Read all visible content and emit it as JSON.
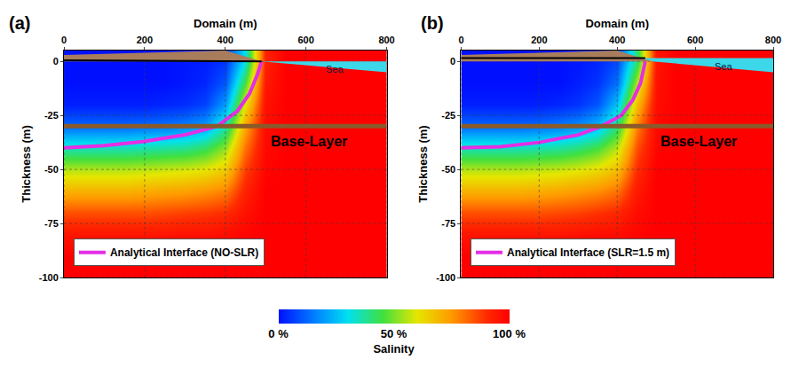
{
  "chart_data": {
    "type": "heatmap",
    "x_label": "Domain (m)",
    "y_label": "Thickness (m)",
    "xlim": [
      0,
      800
    ],
    "xticks": [
      0,
      200,
      400,
      600,
      800
    ],
    "ylim": [
      -100,
      5
    ],
    "yticks": [
      0,
      -25,
      -50,
      -75,
      -100
    ],
    "grid": true,
    "colorbar": {
      "title": "Salinity",
      "range": [
        0,
        100
      ],
      "ticks": [
        {
          "value": 0,
          "label": "0 %"
        },
        {
          "value": 50,
          "label": "50 %"
        },
        {
          "value": 100,
          "label": "100 %"
        }
      ]
    },
    "x": [
      0,
      50,
      100,
      150,
      200,
      250,
      300,
      350,
      400,
      450,
      500,
      550,
      600,
      650,
      700,
      750,
      800
    ],
    "y": [
      0,
      -10,
      -20,
      -30,
      -40,
      -50,
      -60,
      -70,
      -80,
      -90,
      -100
    ],
    "panels": [
      {
        "label": "(a)",
        "legend": "lower left",
        "cells": [
          [
            0,
            0,
            0,
            0,
            0,
            0,
            1,
            2,
            5,
            30,
            92,
            100,
            100,
            100,
            100,
            100,
            100
          ],
          [
            0,
            0,
            0,
            0,
            0,
            0,
            1,
            3,
            10,
            45,
            94,
            100,
            100,
            100,
            100,
            100,
            100
          ],
          [
            2,
            2,
            2,
            2,
            2,
            3,
            4,
            7,
            20,
            60,
            96,
            100,
            100,
            100,
            100,
            100,
            100
          ],
          [
            12,
            12,
            12,
            12,
            13,
            14,
            16,
            20,
            35,
            72,
            97,
            100,
            100,
            100,
            100,
            100,
            100
          ],
          [
            35,
            35,
            35,
            35,
            36,
            37,
            38,
            42,
            52,
            80,
            98,
            100,
            100,
            100,
            100,
            100,
            100
          ],
          [
            55,
            55,
            55,
            55,
            56,
            57,
            58,
            60,
            65,
            87,
            99,
            100,
            100,
            100,
            100,
            100,
            100
          ],
          [
            70,
            70,
            70,
            70,
            71,
            72,
            73,
            75,
            78,
            92,
            100,
            100,
            100,
            100,
            100,
            100,
            100
          ],
          [
            85,
            85,
            85,
            85,
            85,
            86,
            87,
            88,
            90,
            96,
            100,
            100,
            100,
            100,
            100,
            100,
            100
          ],
          [
            95,
            95,
            95,
            95,
            95,
            95,
            96,
            96,
            97,
            99,
            100,
            100,
            100,
            100,
            100,
            100,
            100
          ],
          [
            100,
            100,
            100,
            100,
            100,
            100,
            100,
            100,
            100,
            100,
            100,
            100,
            100,
            100,
            100,
            100,
            100
          ],
          [
            100,
            100,
            100,
            100,
            100,
            100,
            100,
            100,
            100,
            100,
            100,
            100,
            100,
            100,
            100,
            100,
            100
          ]
        ],
        "interface": {
          "name": "Analytical Interface (NO-SLR)",
          "color": "#e52ee5",
          "x": [
            0,
            100,
            200,
            300,
            380,
            430,
            460,
            480,
            490
          ],
          "y": [
            -40,
            -39,
            -37,
            -34,
            -30,
            -23,
            -15,
            -6,
            0
          ]
        },
        "base_layer": {
          "label": "Base-Layer",
          "y": -30
        },
        "land_surface": {
          "x": [
            0,
            400,
            490
          ],
          "y": [
            3,
            5,
            0
          ]
        },
        "water_table": {
          "x": [
            0,
            490
          ],
          "y": [
            0.5,
            0
          ]
        },
        "sea": {
          "label": "Sea",
          "level": 0,
          "seabed_x": [
            490,
            800
          ],
          "seabed_y": [
            0,
            -5
          ]
        }
      },
      {
        "label": "(b)",
        "legend": "lower left",
        "cells": [
          [
            0,
            0,
            0,
            0,
            0,
            0,
            1,
            3,
            8,
            40,
            95,
            100,
            100,
            100,
            100,
            100,
            100
          ],
          [
            0,
            0,
            0,
            0,
            0,
            0,
            2,
            5,
            14,
            55,
            96,
            100,
            100,
            100,
            100,
            100,
            100
          ],
          [
            2,
            2,
            2,
            2,
            2,
            3,
            5,
            10,
            26,
            68,
            97,
            100,
            100,
            100,
            100,
            100,
            100
          ],
          [
            12,
            12,
            12,
            12,
            13,
            15,
            18,
            24,
            40,
            78,
            98,
            100,
            100,
            100,
            100,
            100,
            100
          ],
          [
            35,
            35,
            35,
            35,
            36,
            37,
            40,
            45,
            56,
            85,
            99,
            100,
            100,
            100,
            100,
            100,
            100
          ],
          [
            55,
            55,
            55,
            55,
            56,
            57,
            59,
            62,
            68,
            90,
            100,
            100,
            100,
            100,
            100,
            100,
            100
          ],
          [
            70,
            70,
            70,
            70,
            71,
            72,
            74,
            76,
            80,
            94,
            100,
            100,
            100,
            100,
            100,
            100,
            100
          ],
          [
            85,
            85,
            85,
            85,
            85,
            86,
            87,
            89,
            91,
            97,
            100,
            100,
            100,
            100,
            100,
            100,
            100
          ],
          [
            95,
            95,
            95,
            95,
            95,
            95,
            96,
            97,
            97,
            99,
            100,
            100,
            100,
            100,
            100,
            100,
            100
          ],
          [
            100,
            100,
            100,
            100,
            100,
            100,
            100,
            100,
            100,
            100,
            100,
            100,
            100,
            100,
            100,
            100,
            100
          ],
          [
            100,
            100,
            100,
            100,
            100,
            100,
            100,
            100,
            100,
            100,
            100,
            100,
            100,
            100,
            100,
            100,
            100
          ]
        ],
        "interface": {
          "name": "Analytical Interface (SLR=1.5 m)",
          "color": "#e52ee5",
          "x": [
            0,
            100,
            200,
            300,
            360,
            410,
            440,
            460,
            472
          ],
          "y": [
            -40,
            -39.5,
            -37.5,
            -34,
            -30,
            -25,
            -18,
            -10,
            0
          ]
        },
        "base_layer": {
          "label": "Base-Layer",
          "y": -30
        },
        "land_surface": {
          "x": [
            0,
            400,
            490
          ],
          "y": [
            3,
            5,
            0
          ]
        },
        "water_table": {
          "x": [
            0,
            472
          ],
          "y": [
            1.5,
            1.5
          ]
        },
        "sea": {
          "label": "Sea",
          "level": 1.5,
          "seabed_x": [
            463,
            490,
            800
          ],
          "seabed_y": [
            1.5,
            0,
            -5
          ]
        }
      }
    ]
  }
}
